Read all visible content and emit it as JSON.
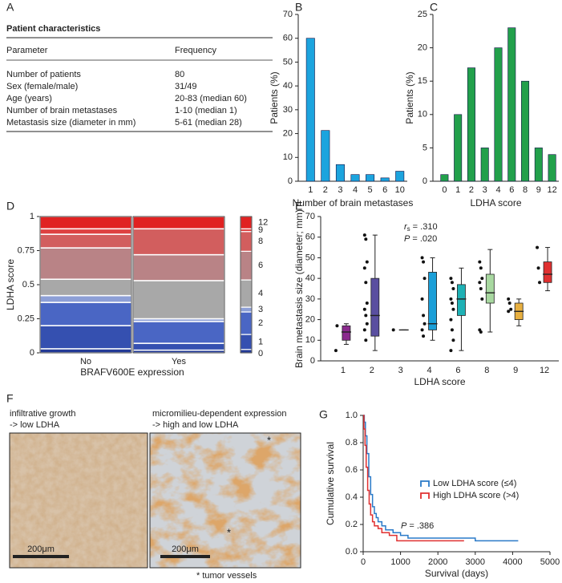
{
  "table": {
    "panel": "A",
    "title": "Patient characteristics",
    "header": [
      "Parameter",
      "Frequency"
    ],
    "rows": [
      [
        "Number of patients",
        "80"
      ],
      [
        "Sex (female/male)",
        "31/49"
      ],
      [
        "Age (years)",
        "20-83 (median 60)"
      ],
      [
        "Number of brain metastases",
        "1-10 (median 1)"
      ],
      [
        "Metastasis size (diameter in mm)",
        "5-61 (median 28)"
      ]
    ]
  },
  "chart_data": [
    {
      "type": "bar",
      "panel": "B",
      "categories": [
        "1",
        "2",
        "3",
        "4",
        "5",
        "6",
        "10"
      ],
      "values": [
        60,
        21.3,
        7,
        2.8,
        2.8,
        1.4,
        4.2
      ],
      "color": "#1ca4de",
      "ylim": [
        0,
        70
      ],
      "yticks": [
        0,
        10,
        20,
        30,
        40,
        50,
        60,
        70
      ],
      "xlabel": "Number of brain metastases",
      "ylabel": "Patients (%)"
    },
    {
      "type": "bar",
      "panel": "C",
      "categories": [
        "0",
        "1",
        "2",
        "3",
        "4",
        "6",
        "8",
        "9",
        "12"
      ],
      "values": [
        1,
        10,
        17,
        5,
        20,
        23,
        15,
        5,
        4
      ],
      "color": "#22a04b",
      "ylim": [
        0,
        25
      ],
      "yticks": [
        0,
        5,
        10,
        15,
        20,
        25
      ],
      "xlabel": "LDHA score",
      "ylabel": "Patients (%)"
    },
    {
      "type": "mosaic",
      "panel": "D",
      "categories": [
        "No",
        "Yes"
      ],
      "column_shares": [
        0.5,
        0.5
      ],
      "series": [
        {
          "name": "0",
          "color": "#233a96",
          "values": [
            0.03,
            0.02
          ]
        },
        {
          "name": "1",
          "color": "#3550b0",
          "values": [
            0.17,
            0.05
          ]
        },
        {
          "name": "2",
          "color": "#4a66c4",
          "values": [
            0.17,
            0.16
          ]
        },
        {
          "name": "3",
          "color": "#8d9fd6",
          "values": [
            0.05,
            0.02
          ]
        },
        {
          "name": "4",
          "color": "#a8a8a8",
          "values": [
            0.12,
            0.28
          ]
        },
        {
          "name": "6",
          "color": "#b98386",
          "values": [
            0.23,
            0.19
          ]
        },
        {
          "name": "8",
          "color": "#d25e5e",
          "values": [
            0.1,
            0.19
          ]
        },
        {
          "name": "9",
          "color": "#de4141",
          "values": [
            0.04,
            0
          ]
        },
        {
          "name": "12",
          "color": "#e02222",
          "values": [
            0.09,
            0.09
          ]
        }
      ],
      "ylim": [
        0,
        1
      ],
      "yticks": [
        0,
        0.25,
        0.5,
        0.75,
        1
      ],
      "xlabel": "BRAFV600E expression",
      "ylabel": "LDHA score"
    },
    {
      "type": "box",
      "panel": "E",
      "categories": [
        "1",
        "2",
        "3",
        "4",
        "6",
        "8",
        "9",
        "12"
      ],
      "boxes": [
        {
          "color": "#8b2a8e",
          "low": 8,
          "q1": 10,
          "median": 14,
          "q3": 17,
          "high": 18,
          "points": [
            5,
            17
          ]
        },
        {
          "color": "#5a4fa0",
          "low": 5,
          "q1": 12,
          "median": 22,
          "q3": 40,
          "high": 61,
          "points": [
            61,
            59,
            48,
            45,
            38,
            28,
            25,
            22,
            18,
            15,
            10
          ]
        },
        {
          "color": "#444444",
          "low": 15,
          "q1": 15,
          "median": 15,
          "q3": 15,
          "high": 15,
          "points": [
            15
          ]
        },
        {
          "color": "#1a9fd8",
          "low": 10,
          "q1": 15,
          "median": 18,
          "q3": 43,
          "high": 50,
          "points": [
            50,
            48,
            40,
            30,
            22,
            18,
            15,
            12
          ]
        },
        {
          "color": "#1eb1b5",
          "low": 5,
          "q1": 22,
          "median": 30,
          "q3": 37,
          "high": 45,
          "points": [
            40,
            38,
            35,
            30,
            28,
            25,
            20,
            15,
            10,
            5
          ]
        },
        {
          "color": "#a8d8a0",
          "low": 14,
          "q1": 28,
          "median": 33,
          "q3": 42,
          "high": 54,
          "points": [
            48,
            45,
            40,
            38,
            35,
            30,
            15,
            14
          ]
        },
        {
          "color": "#e8b040",
          "low": 17,
          "q1": 20,
          "median": 24,
          "q3": 28,
          "high": 30,
          "points": [
            30,
            28,
            25,
            24
          ]
        },
        {
          "color": "#e03030",
          "low": 34,
          "q1": 38,
          "median": 42,
          "q3": 48,
          "high": 55,
          "points": [
            55,
            45,
            38
          ]
        }
      ],
      "ylim": [
        0,
        70
      ],
      "yticks": [
        0,
        10,
        20,
        30,
        40,
        50,
        60,
        70
      ],
      "xlabel": "LDHA score",
      "ylabel": "Brain metastasis size (diameter; mm)",
      "correlation": {
        "symbol": "r",
        "subscript": "s",
        "text": "= .310"
      },
      "p_value": {
        "symbol": "P",
        "text": "= .020"
      }
    },
    {
      "type": "survival",
      "panel": "G",
      "series": [
        {
          "name": "Low LDHA score (≤4)",
          "color": "#2a7ac8",
          "x": [
            0,
            30,
            60,
            100,
            150,
            200,
            250,
            300,
            350,
            400,
            500,
            600,
            800,
            1000,
            1200,
            2000,
            3000,
            4150
          ],
          "values": [
            1,
            0.95,
            0.85,
            0.72,
            0.55,
            0.42,
            0.33,
            0.28,
            0.25,
            0.22,
            0.19,
            0.16,
            0.14,
            0.12,
            0.1,
            0.1,
            0.08,
            0.08
          ]
        },
        {
          "name": "High LDHA score (>4)",
          "color": "#e03030",
          "x": [
            0,
            20,
            50,
            80,
            120,
            160,
            200,
            250,
            300,
            400,
            500,
            700,
            900,
            1600,
            2700
          ],
          "values": [
            1,
            0.9,
            0.78,
            0.62,
            0.45,
            0.35,
            0.27,
            0.22,
            0.19,
            0.17,
            0.14,
            0.12,
            0.08,
            0.08,
            0.08
          ]
        }
      ],
      "xlim": [
        0,
        5000
      ],
      "xticks": [
        0,
        1000,
        2000,
        3000,
        4000,
        5000
      ],
      "ylim": [
        0,
        1
      ],
      "yticks": [
        {
          "value": 0,
          "label": "0.0"
        },
        0.2,
        0.4,
        0.6,
        0.8,
        {
          "value": 1,
          "label": "1.0"
        }
      ],
      "xlabel": "Survival (days)",
      "ylabel": "Cumulative survival",
      "p_value": {
        "symbol": "P",
        "text": "= .386"
      }
    }
  ],
  "micrographs": {
    "panel": "F",
    "images": [
      {
        "caption": [
          "infiltrative growth",
          "-> low LDHA"
        ],
        "scale_bar": "200μm"
      },
      {
        "caption": [
          "micromilieu-dependent expression",
          "-> high and low LDHA"
        ],
        "scale_bar": "200μm",
        "markers": [
          "*",
          "*"
        ]
      }
    ],
    "footnote": "* tumor vessels"
  }
}
